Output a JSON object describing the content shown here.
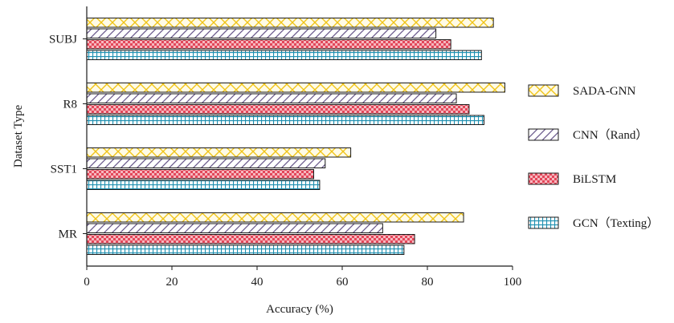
{
  "chart_data": {
    "type": "bar",
    "orientation": "horizontal",
    "categories": [
      "MR",
      "SST1",
      "R8",
      "SUBJ"
    ],
    "series": [
      {
        "name": "SADA-GNN",
        "values": [
          88.5,
          62.0,
          98.2,
          95.5
        ],
        "color": "#f0c419",
        "pattern": "crosshatch-diamond"
      },
      {
        "name": "CNN（Rand）",
        "values": [
          69.5,
          56.0,
          86.8,
          82.0
        ],
        "color": "#6a5a8c",
        "pattern": "diagonal"
      },
      {
        "name": "BiLSTM",
        "values": [
          77.0,
          53.3,
          89.8,
          85.5
        ],
        "color": "#e3475a",
        "pattern": "checker"
      },
      {
        "name": "GCN（Texting）",
        "values": [
          74.5,
          54.7,
          93.3,
          92.7
        ],
        "color": "#1e8fb0",
        "pattern": "grid"
      }
    ],
    "xlabel": "Accuracy (%)",
    "ylabel": "Dataset Type",
    "xlim": [
      0,
      100
    ],
    "xticks": [
      0,
      20,
      40,
      60,
      80,
      100
    ],
    "grid": false,
    "legend_position": "right"
  }
}
